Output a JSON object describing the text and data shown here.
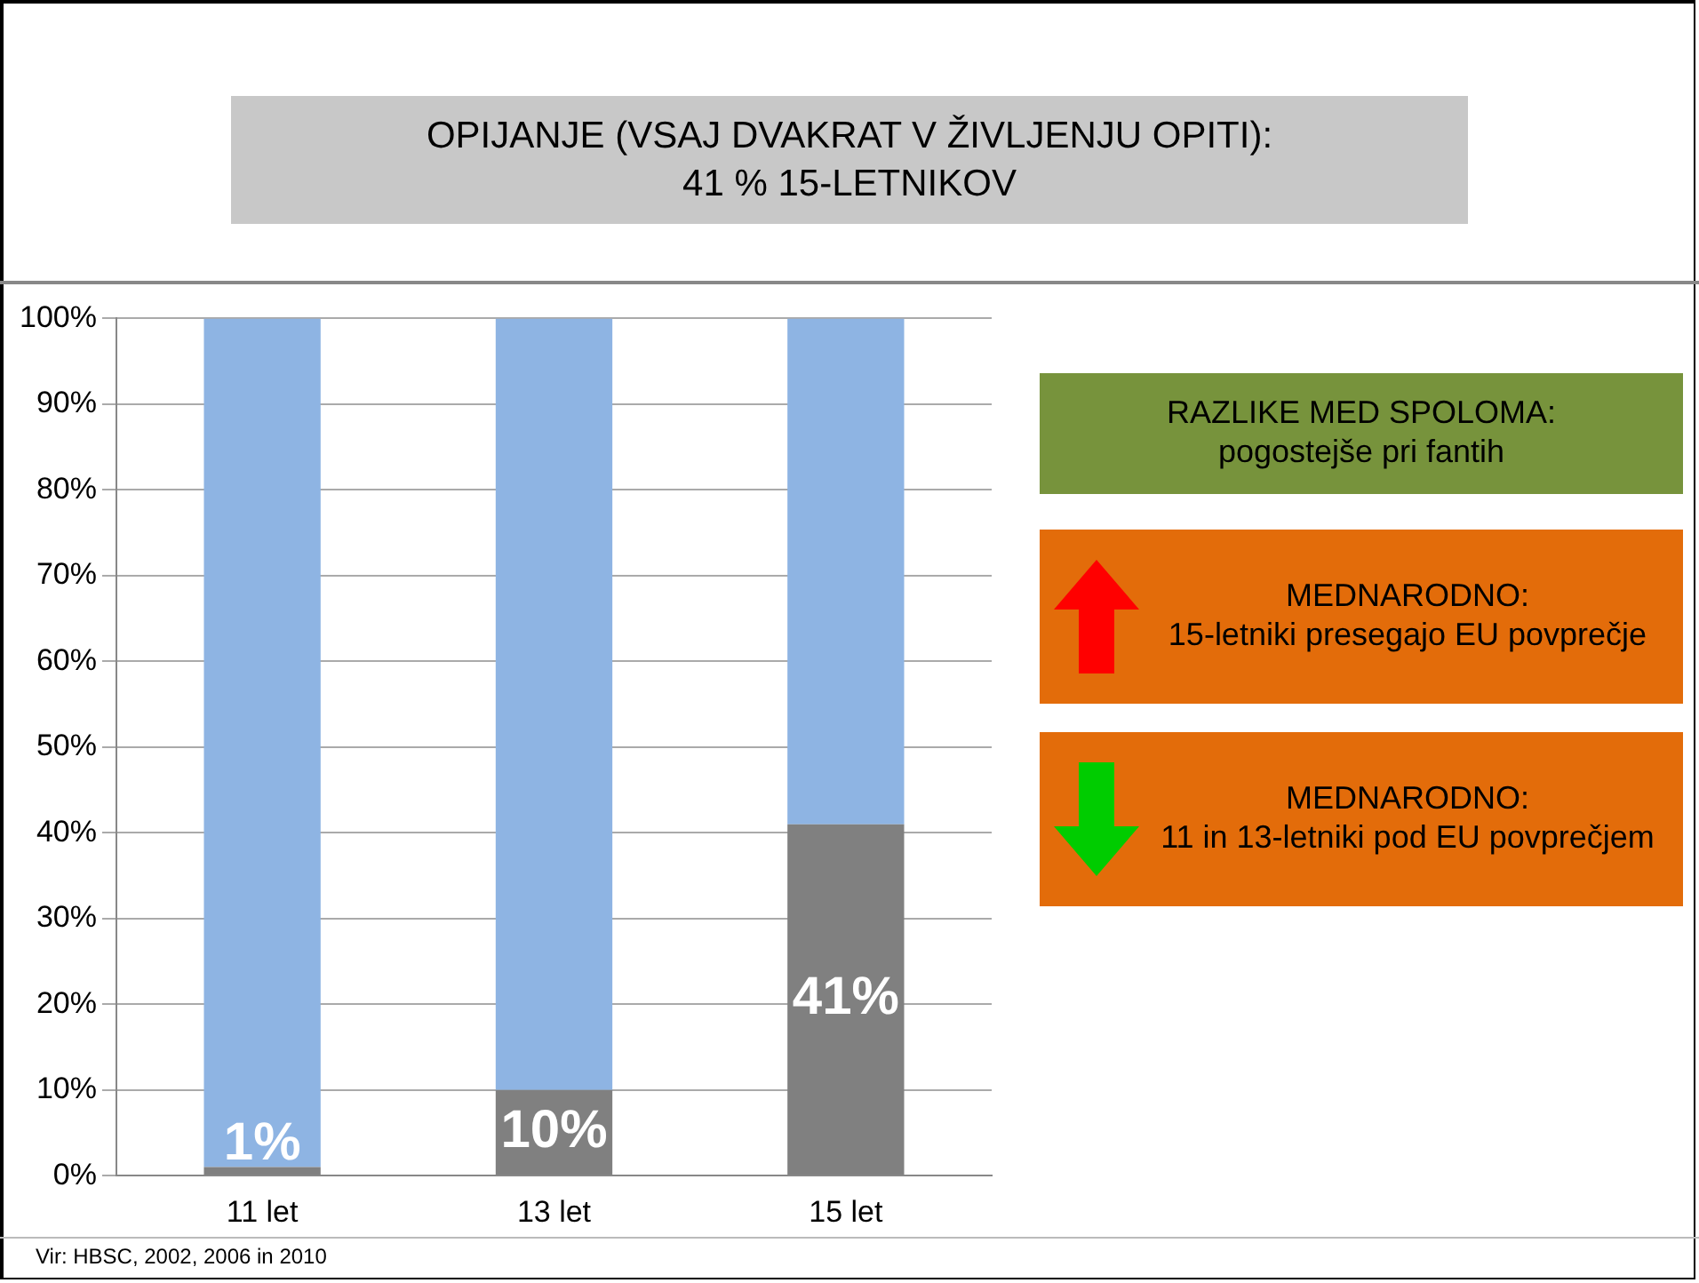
{
  "chart_data": {
    "type": "bar",
    "title": "OPIJANJE (VSAJ DVAKRAT V ŽIVLJENJU OPITI):\n41 % 15-LETNIKOV",
    "categories": [
      "11 let",
      "13 let",
      "15 let"
    ],
    "series": [
      {
        "color": "#808080",
        "values": [
          1,
          10,
          41
        ],
        "value_labels": [
          "1%",
          "10%",
          "41%"
        ]
      },
      {
        "color": "#8eb4e3",
        "values": [
          99,
          90,
          59
        ]
      }
    ],
    "stacked": true,
    "ylim": [
      0,
      100
    ],
    "yticks": [
      {
        "value": 0,
        "label": "0%"
      },
      {
        "value": 10,
        "label": "10%"
      },
      {
        "value": 20,
        "label": "20%"
      },
      {
        "value": 30,
        "label": "30%"
      },
      {
        "value": 40,
        "label": "40%"
      },
      {
        "value": 50,
        "label": "50%"
      },
      {
        "value": 60,
        "label": "60%"
      },
      {
        "value": 70,
        "label": "70%"
      },
      {
        "value": 80,
        "label": "80%"
      },
      {
        "value": 90,
        "label": "90%"
      },
      {
        "value": 100,
        "label": "100%"
      }
    ],
    "grid": "y",
    "legend": false,
    "annotations": [
      "RAZLIKE MED SPOLOMA:\npogostejše pri fantih",
      "MEDNARODNO:\n15-letniki presegajo EU povprečje",
      "MEDNARODNO:\n11 in 13-letniki pod  EU povprečjem",
      "Vir: HBSC, 2002, 2006 in 2010"
    ]
  }
}
